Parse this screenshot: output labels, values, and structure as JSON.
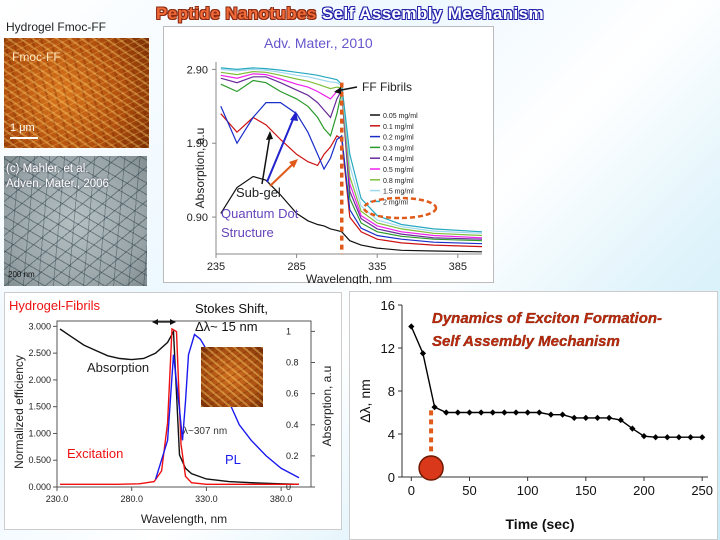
{
  "slide": {
    "title_part1": "Peptide Nanotubes",
    "title_part2": "Self Assembly Mechanism",
    "hydrogel_label": "Hydrogel Fmoc-FF",
    "afm_image_label": "Fmoc-FF",
    "afm_scale_label": "1 μm",
    "tem_citation_line1": "(c) Mahler, et al.",
    "tem_citation_line2": "Adven. Mater., 2006",
    "tem_scale_label": "200 nm"
  },
  "colors": {
    "dashed_marker": "#e05a1a",
    "dynamics_title": "#c02a0a",
    "annotation_purple": "#6644bb",
    "arrow_blue": "#2222cc",
    "arrow_orange": "#e05a1a"
  },
  "chart_data": [
    {
      "id": "concentration_absorption",
      "type": "line",
      "citation": "Adv. Mater., 2010",
      "xlabel": "Wavelength, nm",
      "ylabel": "Absorption, a.u",
      "xlim": [
        235,
        400
      ],
      "ylim": [
        0.4,
        3.0
      ],
      "x_ticks": [
        "235",
        "285",
        "335",
        "385"
      ],
      "y_ticks": [
        "0.90",
        "1.90",
        "2.90"
      ],
      "x_tick_values": [
        235,
        285,
        335,
        385
      ],
      "y_tick_values": [
        0.9,
        1.9,
        2.9
      ],
      "annotations": {
        "fibrils": "FF Fibrils",
        "subgel": "Sub-gel",
        "qd_line1": "Quantum Dot",
        "qd_line2": "Structure"
      },
      "marker_wavelength": 313,
      "series": [
        {
          "name": "0.05 mg/ml",
          "color": "#111111",
          "x": [
            238,
            248,
            258,
            266,
            275,
            285,
            292,
            298,
            302,
            306,
            310,
            313,
            318,
            325,
            335,
            350,
            370,
            400
          ],
          "y": [
            0.95,
            1.3,
            1.45,
            1.4,
            1.2,
            0.95,
            0.85,
            0.8,
            0.78,
            0.74,
            0.72,
            0.7,
            0.58,
            0.52,
            0.48,
            0.45,
            0.44,
            0.43
          ]
        },
        {
          "name": "0.1 mg/ml",
          "color": "#cc1111",
          "x": [
            238,
            248,
            258,
            266,
            275,
            285,
            292,
            298,
            302,
            306,
            310,
            313,
            318,
            325,
            335,
            350,
            370,
            400
          ],
          "y": [
            2.3,
            2.05,
            2.25,
            2.15,
            1.95,
            1.75,
            1.65,
            1.6,
            1.75,
            1.85,
            2.0,
            1.95,
            0.9,
            0.7,
            0.6,
            0.55,
            0.52,
            0.5
          ]
        },
        {
          "name": "0.2 mg/ml",
          "color": "#1a2ec8",
          "x": [
            238,
            248,
            258,
            266,
            275,
            285,
            292,
            298,
            302,
            306,
            310,
            313,
            318,
            325,
            335,
            350,
            370,
            400
          ],
          "y": [
            2.4,
            1.9,
            2.25,
            2.45,
            2.45,
            2.3,
            2.05,
            1.75,
            1.55,
            1.7,
            1.95,
            2.0,
            1.0,
            0.75,
            0.65,
            0.6,
            0.56,
            0.54
          ]
        },
        {
          "name": "0.3 mg/ml",
          "color": "#2a9a2a",
          "x": [
            238,
            248,
            258,
            266,
            275,
            285,
            292,
            298,
            302,
            306,
            310,
            313,
            318,
            325,
            335,
            350,
            370,
            400
          ],
          "y": [
            2.7,
            2.6,
            2.75,
            2.72,
            2.6,
            2.5,
            2.4,
            2.25,
            2.1,
            2.0,
            2.3,
            2.6,
            1.15,
            0.82,
            0.7,
            0.64,
            0.6,
            0.58
          ]
        },
        {
          "name": "0.4 mg/ml",
          "color": "#6a2a9a",
          "x": [
            238,
            248,
            258,
            266,
            275,
            285,
            292,
            298,
            302,
            306,
            310,
            313,
            318,
            325,
            335,
            350,
            370,
            400
          ],
          "y": [
            2.78,
            2.72,
            2.8,
            2.8,
            2.72,
            2.62,
            2.55,
            2.45,
            2.35,
            2.25,
            2.5,
            2.62,
            1.25,
            0.88,
            0.74,
            0.67,
            0.62,
            0.6
          ]
        },
        {
          "name": "0.5 mg/ml",
          "color": "#ee22ee",
          "x": [
            238,
            248,
            258,
            266,
            275,
            285,
            292,
            298,
            302,
            306,
            310,
            313,
            318,
            325,
            335,
            350,
            370,
            400
          ],
          "y": [
            2.82,
            2.78,
            2.84,
            2.83,
            2.77,
            2.7,
            2.66,
            2.6,
            2.55,
            2.5,
            2.6,
            2.64,
            1.35,
            0.92,
            0.78,
            0.7,
            0.65,
            0.62
          ]
        },
        {
          "name": "0.8 mg/ml",
          "color": "#7fbf3a",
          "x": [
            238,
            248,
            258,
            266,
            275,
            285,
            292,
            298,
            302,
            306,
            310,
            313,
            318,
            325,
            335,
            350,
            370,
            400
          ],
          "y": [
            2.86,
            2.83,
            2.87,
            2.86,
            2.82,
            2.77,
            2.74,
            2.7,
            2.67,
            2.64,
            2.66,
            2.65,
            1.45,
            0.98,
            0.82,
            0.74,
            0.68,
            0.65
          ]
        },
        {
          "name": "1.5 mg/ml",
          "color": "#9fd8ee",
          "x": [
            238,
            248,
            258,
            266,
            275,
            285,
            292,
            298,
            302,
            306,
            310,
            313,
            318,
            325,
            335,
            350,
            370,
            400
          ],
          "y": [
            2.9,
            2.88,
            2.9,
            2.89,
            2.86,
            2.82,
            2.8,
            2.77,
            2.75,
            2.73,
            2.72,
            2.68,
            1.6,
            1.05,
            0.86,
            0.77,
            0.71,
            0.68
          ]
        },
        {
          "name": "2 mg/ml",
          "color": "#26a9c0",
          "x": [
            238,
            248,
            258,
            266,
            275,
            285,
            292,
            298,
            302,
            306,
            310,
            313,
            318,
            325,
            335,
            350,
            370,
            400
          ],
          "y": [
            2.92,
            2.9,
            2.92,
            2.91,
            2.89,
            2.86,
            2.84,
            2.82,
            2.8,
            2.78,
            2.76,
            2.7,
            1.75,
            1.15,
            0.92,
            0.8,
            0.74,
            0.7
          ]
        }
      ]
    },
    {
      "id": "stokes_shift",
      "type": "line",
      "title_left": "Hydrogel-Fibrils",
      "title_right_line1": "Stokes Shift,",
      "title_right_line2": "Δλ~ 15 nm",
      "xlabel": "Wavelength, nm",
      "ylabel_left": "Normalized efficiency",
      "ylabel_right": "Absorption, a.u",
      "xlim": [
        230,
        400
      ],
      "ylim_left": [
        0,
        3.1
      ],
      "ylim_right": [
        0,
        1.0667
      ],
      "x_ticks": [
        "230.0",
        "280.0",
        "330.0",
        "380.0"
      ],
      "x_tick_values": [
        230,
        280,
        330,
        380
      ],
      "y_ticks_left": [
        "0.000",
        "0.500",
        "1.000",
        "1.500",
        "2.000",
        "2.500",
        "3.000"
      ],
      "y_tick_values_left": [
        0,
        0.5,
        1.0,
        1.5,
        2.0,
        2.5,
        3.0
      ],
      "y_ticks_right": [
        "0",
        "0.2",
        "0.4",
        "0.6",
        "0.8",
        "1"
      ],
      "y_tick_values_right": [
        0,
        0.2,
        0.4,
        0.6,
        0.8,
        1.0
      ],
      "peak_label": "λ~307 nm",
      "series": [
        {
          "name": "Absorption",
          "axis": "left",
          "color": "#111111",
          "x": [
            232,
            240,
            248,
            256,
            264,
            272,
            280,
            288,
            296,
            304,
            308,
            312,
            316,
            320,
            330,
            345,
            360,
            380,
            392
          ],
          "y": [
            2.95,
            2.8,
            2.65,
            2.55,
            2.45,
            2.4,
            2.38,
            2.4,
            2.5,
            2.7,
            2.9,
            0.6,
            0.35,
            0.25,
            0.15,
            0.1,
            0.08,
            0.06,
            0.05
          ]
        },
        {
          "name": "Excitation",
          "axis": "left",
          "color": "#ee1111",
          "x": [
            232,
            250,
            270,
            285,
            295,
            300,
            304,
            307,
            310,
            313,
            316,
            320,
            330,
            350,
            380,
            392
          ],
          "y": [
            0.05,
            0.05,
            0.05,
            0.06,
            0.1,
            0.3,
            1.2,
            2.95,
            2.9,
            0.8,
            0.2,
            0.08,
            0.05,
            0.05,
            0.05,
            0.05
          ]
        },
        {
          "name": "PL",
          "axis": "right",
          "color": "#1a1aee",
          "x": [
            296,
            304,
            308,
            312,
            314,
            316,
            318,
            322,
            326,
            332,
            338,
            345,
            352,
            360,
            370,
            380,
            388,
            392
          ],
          "y": [
            0.05,
            0.3,
            0.85,
            0.5,
            0.3,
            0.55,
            0.85,
            0.98,
            0.95,
            0.85,
            0.7,
            0.55,
            0.4,
            0.3,
            0.2,
            0.12,
            0.08,
            0.06
          ]
        }
      ]
    },
    {
      "id": "exciton_dynamics",
      "type": "line",
      "title_line1": "Dynamics of Exciton Formation-",
      "title_line2": "Self Assembly Mechanism",
      "xlabel": "Time (sec)",
      "ylabel": "Δλ, nm",
      "xlim": [
        -8,
        255
      ],
      "ylim": [
        0,
        16
      ],
      "x_ticks": [
        "0",
        "50",
        "100",
        "150",
        "200",
        "250"
      ],
      "x_tick_values": [
        0,
        50,
        100,
        150,
        200,
        250
      ],
      "y_ticks": [
        "0",
        "4",
        "8",
        "12",
        "16"
      ],
      "y_tick_values": [
        0,
        4,
        8,
        12,
        16
      ],
      "marker_time": 17,
      "series": [
        {
          "name": "",
          "color": "#000000",
          "x": [
            0,
            10,
            20,
            30,
            40,
            50,
            60,
            70,
            80,
            90,
            100,
            110,
            120,
            130,
            140,
            150,
            160,
            170,
            180,
            190,
            200,
            210,
            220,
            230,
            240,
            250
          ],
          "y": [
            14,
            11.5,
            6.5,
            6,
            6,
            6,
            6,
            6,
            6,
            6,
            6,
            6,
            5.8,
            5.8,
            5.5,
            5.5,
            5.5,
            5.5,
            5.3,
            4.5,
            3.8,
            3.7,
            3.7,
            3.7,
            3.7,
            3.7
          ]
        }
      ]
    }
  ]
}
